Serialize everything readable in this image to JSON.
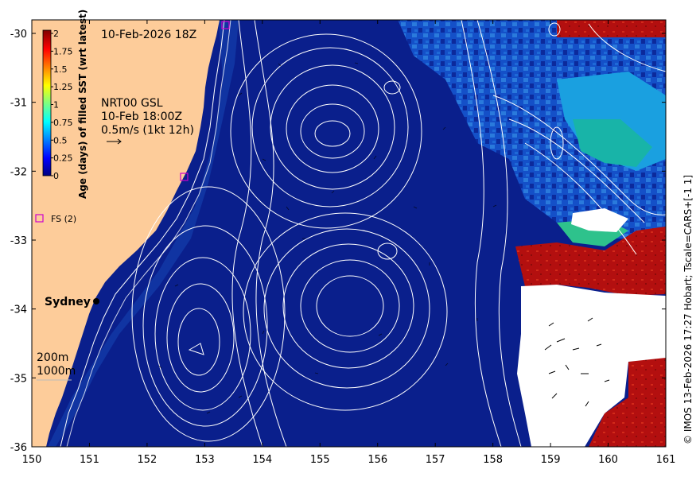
{
  "map": {
    "date_title": "10-Feb-2026 18Z",
    "product": {
      "line1": "NRT00 GSL",
      "line2": "10-Feb 18:00Z",
      "line3": "0.5m/s (1kt 12h)"
    },
    "city": "Sydney",
    "depth_labels": [
      "200m",
      "1000m"
    ],
    "legend_marker": "FS (2)",
    "credit": "© IMOS 13-Feb-2026 17:27 Hobart; Tscale=CARS+[-1 1]",
    "x_ticks": [
      "150",
      "151",
      "152",
      "153",
      "154",
      "155",
      "156",
      "157",
      "158",
      "159",
      "160",
      "161"
    ],
    "y_ticks": [
      "-30",
      "-31",
      "-32",
      "-33",
      "-34",
      "-35",
      "-36"
    ],
    "colorbar": {
      "title": "Age (days) of filled SST (wrt latest)",
      "ticks": [
        "2",
        "1.75",
        "1.5",
        "1.25",
        "1",
        "0.75",
        "0.5",
        "0.25",
        "0"
      ]
    },
    "colors": {
      "ocean": "#0a1f8c",
      "land": "#fdcc9a",
      "old_sst": "#b30f0f",
      "contour": "#ffffff",
      "marker": "#ff00ff"
    }
  }
}
